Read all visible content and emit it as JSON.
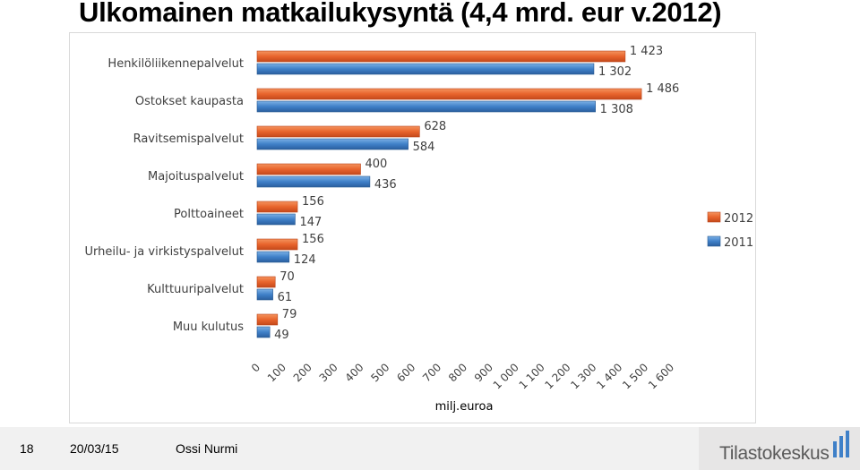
{
  "page": {
    "title": "Ulkomainen matkailukysyntä (4,4 mrd. eur v.2012)"
  },
  "footer": {
    "page_number": "18",
    "date": "20/03/15",
    "author": "Ossi Nurmi",
    "logo_text": "Tilastokeskus"
  },
  "colors": {
    "series_2012": "#e8642c",
    "series_2011": "#3f80c8",
    "label_color": "#404040",
    "grid": "#d9d9d9"
  },
  "chart_data": {
    "type": "bar",
    "orientation": "horizontal",
    "title": "",
    "xlabel": "milj.euroa",
    "ylabel": "",
    "xlim": [
      0,
      1600
    ],
    "xticks": [
      0,
      100,
      200,
      300,
      400,
      500,
      600,
      700,
      800,
      900,
      1000,
      1100,
      1200,
      1300,
      1400,
      1500,
      1600
    ],
    "xtick_labels": [
      "0",
      "100",
      "200",
      "300",
      "400",
      "500",
      "600",
      "700",
      "800",
      "900",
      "1 000",
      "1 100",
      "1 200",
      "1 300",
      "1 400",
      "1 500",
      "1 600"
    ],
    "categories": [
      "Henkilöliikennepalvelut",
      "Ostokset kaupasta",
      "Ravitsemispalvelut",
      "Majoituspalvelut",
      "Polttoaineet",
      "Urheilu- ja virkistyspalvelut",
      "Kulttuuripalvelut",
      "Muu kulutus"
    ],
    "series": [
      {
        "name": "2012",
        "values": [
          1423,
          1486,
          628,
          400,
          156,
          156,
          70,
          79
        ],
        "labels": [
          "1 423",
          "1 486",
          "628",
          "400",
          "156",
          "156",
          "70",
          "79"
        ]
      },
      {
        "name": "2011",
        "values": [
          1302,
          1308,
          584,
          436,
          147,
          124,
          61,
          49
        ],
        "labels": [
          "1 302",
          "1 308",
          "584",
          "436",
          "147",
          "124",
          "61",
          "49"
        ]
      }
    ],
    "grid": false,
    "legend": "right"
  }
}
